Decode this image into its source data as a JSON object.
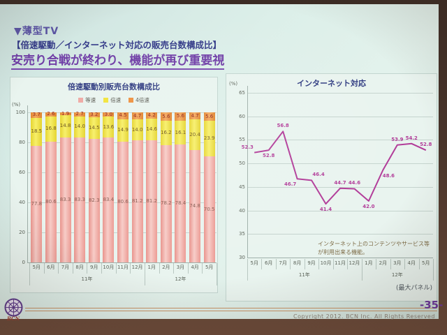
{
  "slide": {
    "tag": "▼薄型TV",
    "subtitle": "【倍速駆動／インターネット対応の販売台数構成比】",
    "headline": "安売り合戦が終わり、機能が再び重要視"
  },
  "footer": {
    "copyright": "Copyright 2012.  BCN Inc.  All Rights Reserved",
    "page_number": "-35-",
    "logo": "BCN"
  },
  "colors": {
    "accent_purple": "#6f3da6",
    "line_magenta": "#b13a98",
    "bar_pink": "#f0a9a4",
    "bar_yellow": "#f2e43c",
    "bar_orange": "#ee9140"
  },
  "chart_data": [
    {
      "type": "bar",
      "stacked": true,
      "title": "倍速駆動別販売台数構成比",
      "unit_label": "(%)",
      "categories": [
        "5月",
        "6月",
        "7月",
        "8月",
        "9月",
        "10月",
        "11月",
        "12月",
        "1月",
        "2月",
        "3月",
        "4月",
        "5月"
      ],
      "year_groups": [
        {
          "label": "11年",
          "span": 8
        },
        {
          "label": "12年",
          "span": 5
        }
      ],
      "series": [
        {
          "name": "等速",
          "color": "#f0a9a4",
          "values": [
            77.8,
            80.6,
            83.3,
            83.3,
            82.3,
            83.4,
            80.6,
            81.2,
            81.2,
            78.2,
            78.4,
            74.8,
            70.5
          ]
        },
        {
          "name": "倍速",
          "color": "#f2e43c",
          "values": [
            18.5,
            16.8,
            14.8,
            14.0,
            14.5,
            13.6,
            14.9,
            14.0,
            14.6,
            16.2,
            16.1,
            20.4,
            23.9
          ]
        },
        {
          "name": "4倍速",
          "color": "#ee9140",
          "values": [
            3.7,
            2.6,
            1.9,
            2.7,
            3.2,
            3.0,
            4.5,
            4.7,
            4.2,
            5.6,
            5.6,
            4.7,
            5.6
          ]
        }
      ],
      "ylim": [
        0,
        100
      ],
      "yticks": [
        100,
        80,
        60,
        40,
        20,
        0
      ],
      "grid": true,
      "legend_position": "top"
    },
    {
      "type": "line",
      "title": "インターネット対応",
      "unit_label": "(%)",
      "categories": [
        "5月",
        "6月",
        "7月",
        "8月",
        "9月",
        "10月",
        "11月",
        "12月",
        "1月",
        "2月",
        "3月",
        "4月",
        "5月"
      ],
      "year_groups": [
        {
          "label": "11年",
          "span": 8
        },
        {
          "label": "12年",
          "span": 5
        }
      ],
      "values": [
        52.3,
        52.8,
        56.8,
        46.7,
        46.4,
        41.4,
        44.7,
        44.6,
        42.0,
        48.6,
        53.9,
        54.2,
        52.8
      ],
      "label_positions": [
        "above-left",
        "below",
        "above",
        "below-left",
        "above-right",
        "below",
        "above",
        "above",
        "below",
        "below-right",
        "above",
        "above",
        "above"
      ],
      "ylim": [
        30,
        65
      ],
      "yticks": [
        65,
        60,
        55,
        50,
        45,
        40,
        35,
        30
      ],
      "grid": true,
      "line_color": "#b13a98",
      "annotation": "インターネット上のコンテンツやサービス等が利用出来る機能。",
      "footnote": "(最大パネル)"
    }
  ]
}
